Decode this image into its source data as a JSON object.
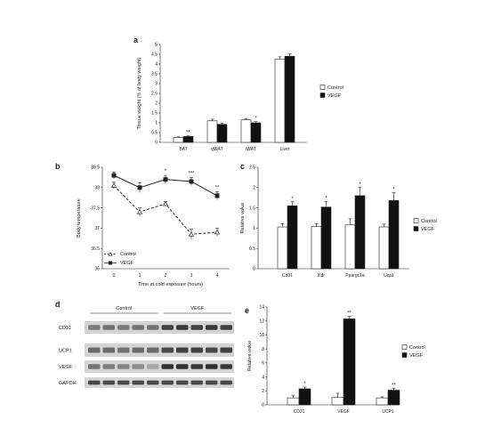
{
  "figure": {
    "panels": [
      {
        "letter": "a",
        "type": "bar",
        "categories": [
          "BAT",
          "gWAT",
          "iWAT",
          "Liver"
        ],
        "series": [
          {
            "name": "Control",
            "values": [
              0.25,
              1.1,
              1.15,
              4.25
            ],
            "errors": [
              0.03,
              0.08,
              0.07,
              0.12
            ]
          },
          {
            "name": "VEGF",
            "values": [
              0.3,
              0.92,
              1.0,
              4.4
            ],
            "errors": [
              0.03,
              0.06,
              0.06,
              0.12
            ]
          }
        ],
        "significance": [
          "**",
          "",
          "*",
          ""
        ],
        "ylabel": "Tissue weight (% of body weight)",
        "ylim": [
          0,
          5
        ],
        "yticks": [
          "0",
          "0.5",
          "1",
          "1.5",
          "2",
          "2.5",
          "3",
          "3.5",
          "4",
          "4.5",
          "5"
        ],
        "legend_position": "right"
      },
      {
        "letter": "b",
        "type": "line",
        "x": [
          0,
          1,
          2,
          3,
          4
        ],
        "xticks": [
          "0",
          "1",
          "2",
          "3",
          "4"
        ],
        "series": [
          {
            "name": "Control",
            "values": [
              38.05,
              37.4,
              37.6,
              36.85,
              36.9
            ],
            "errors": [
              0.08,
              0.1,
              0.06,
              0.12,
              0.1
            ],
            "marker": "triangle-open",
            "dash": true
          },
          {
            "name": "VEGF",
            "values": [
              38.3,
              38.0,
              38.2,
              38.15,
              37.8
            ],
            "errors": [
              0.08,
              0.12,
              0.1,
              0.1,
              0.1
            ],
            "marker": "square-filled",
            "dash": false
          }
        ],
        "significance": [
          "",
          "",
          "*",
          "***",
          "**"
        ],
        "xlabel": "Time at cold exposure (hours)",
        "ylabel": "Body temperature",
        "ylim": [
          36,
          38.5
        ],
        "yticks": [
          "36",
          "36.5",
          "37",
          "37.5",
          "38",
          "38.5"
        ],
        "legend_position": "bottom-left"
      },
      {
        "letter": "c",
        "type": "bar",
        "categories": [
          "Cd31",
          "Kdr",
          "Ppargc1a",
          "Ucp1"
        ],
        "series": [
          {
            "name": "Control",
            "values": [
              1.03,
              1.04,
              1.08,
              1.03
            ],
            "errors": [
              0.08,
              0.07,
              0.15,
              0.07
            ]
          },
          {
            "name": "VEGF",
            "values": [
              1.55,
              1.52,
              1.8,
              1.68
            ],
            "errors": [
              0.1,
              0.14,
              0.2,
              0.2
            ]
          }
        ],
        "significance": [
          "*",
          "*",
          "*",
          "*"
        ],
        "ylabel": "Relative value",
        "ylim": [
          0,
          2.5
        ],
        "yticks": [
          "0",
          "0.5",
          "1",
          "1.5",
          "2",
          "2.5"
        ],
        "legend_position": "right"
      },
      {
        "letter": "e",
        "type": "bar",
        "categories": [
          "CD31",
          "VEGF",
          "UCP1"
        ],
        "series": [
          {
            "name": "Control",
            "values": [
              1.0,
              1.05,
              1.0
            ],
            "errors": [
              0.3,
              0.6,
              0.15
            ]
          },
          {
            "name": "VEGF",
            "values": [
              2.3,
              12.3,
              2.1
            ],
            "errors": [
              0.25,
              0.35,
              0.25
            ]
          }
        ],
        "significance": [
          "*",
          "**",
          "**"
        ],
        "ylabel": "Relative value",
        "ylim": [
          0,
          14
        ],
        "yticks": [
          "0",
          "2",
          "4",
          "6",
          "8",
          "10",
          "12",
          "14"
        ],
        "legend_position": "right"
      }
    ],
    "blot": {
      "letter": "d",
      "groups": [
        "Control",
        "VEGF"
      ],
      "lanes_per_group": 5,
      "rows": [
        {
          "label": "CD31",
          "intensity": [
            0.45,
            0.5,
            0.45,
            0.5,
            0.5,
            0.8,
            0.85,
            0.8,
            0.85,
            0.8
          ]
        },
        {
          "label": "UCP1",
          "intensity": [
            0.55,
            0.55,
            0.5,
            0.55,
            0.55,
            0.75,
            0.8,
            0.8,
            0.75,
            0.8
          ]
        },
        {
          "label": "VEGF",
          "intensity": [
            0.5,
            0.45,
            0.4,
            0.35,
            0.2,
            0.9,
            0.9,
            0.85,
            0.9,
            0.85
          ]
        },
        {
          "label": "GAPDH",
          "intensity": [
            0.75,
            0.75,
            0.75,
            0.75,
            0.75,
            0.75,
            0.75,
            0.75,
            0.75,
            0.75
          ]
        }
      ]
    }
  }
}
